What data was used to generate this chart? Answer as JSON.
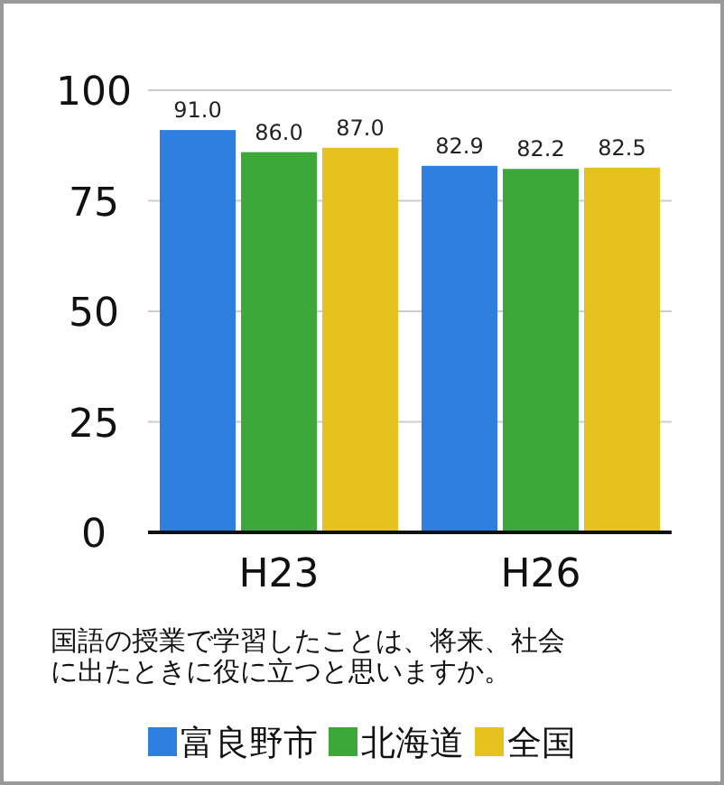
{
  "chart_data": {
    "type": "bar",
    "categories": [
      "H23",
      "H26"
    ],
    "series": [
      {
        "name": "富良野市",
        "color": "#2f7fe0",
        "values": [
          91.0,
          82.9
        ],
        "value_labels": [
          "91.0",
          "82.9"
        ]
      },
      {
        "name": "北海道",
        "color": "#3ca83a",
        "values": [
          86.0,
          82.2
        ],
        "value_labels": [
          "86.0",
          "82.2"
        ]
      },
      {
        "name": "全国",
        "color": "#e6c21f",
        "values": [
          87.0,
          82.5
        ],
        "value_labels": [
          "87.0",
          "82.5"
        ]
      }
    ],
    "ylim": [
      0,
      100
    ],
    "yticks": [
      0,
      25,
      50,
      75,
      100
    ],
    "grid": "y",
    "legend": "bottom",
    "annotations": [
      "国語の授業で学習したことは、将来、社会に出たときに役に立つと思いますか。"
    ]
  }
}
